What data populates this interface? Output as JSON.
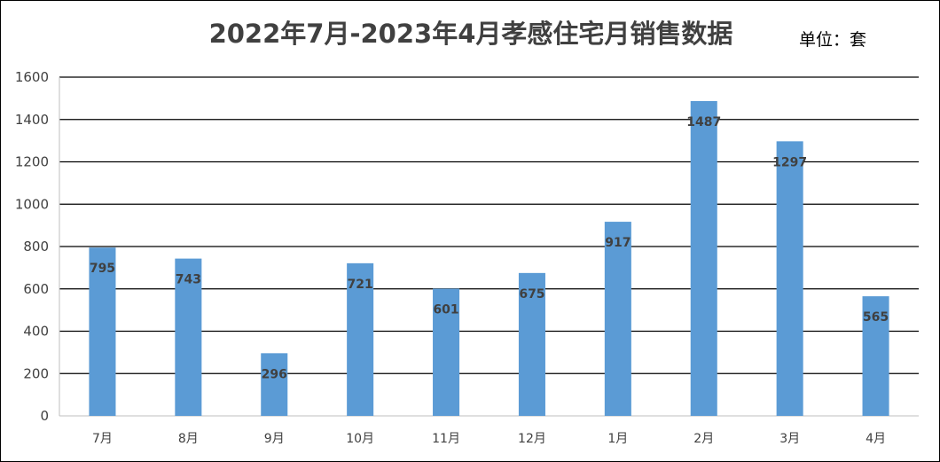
{
  "chart_data": {
    "type": "bar",
    "title": "2022年7月-2023年4月孝感住宅月销售数据",
    "unit": "单位：套",
    "categories": [
      "7月",
      "8月",
      "9月",
      "10月",
      "11月",
      "12月",
      "1月",
      "2月",
      "3月",
      "4月"
    ],
    "values": [
      795,
      743,
      296,
      721,
      601,
      675,
      917,
      1487,
      1297,
      565
    ],
    "ylim": [
      0,
      1600
    ],
    "yticks": [
      0,
      200,
      400,
      600,
      800,
      1000,
      1200,
      1400,
      1600
    ],
    "grid": true,
    "bar_color": "#5b9bd5",
    "data_label_position": "inside-end"
  }
}
